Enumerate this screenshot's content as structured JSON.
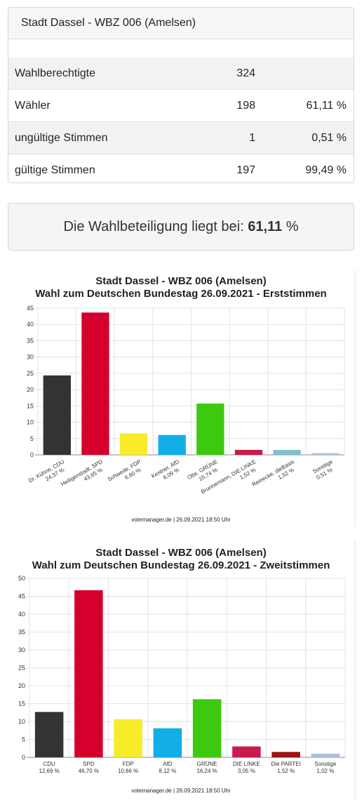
{
  "summary": {
    "title": "Stadt Dassel - WBZ 006 (Amelsen)",
    "rows": [
      {
        "label": "Wahlberechtigte",
        "count": "324",
        "percent": ""
      },
      {
        "label": "Wähler",
        "count": "198",
        "percent": "61,11 %"
      },
      {
        "label": "ungültige Stimmen",
        "count": "1",
        "percent": "0,51 %"
      },
      {
        "label": "gültige Stimmen",
        "count": "197",
        "percent": "99,49 %"
      }
    ]
  },
  "turnout": {
    "prefix": "Die Wahlbeteiligung liegt bei:",
    "value": "61,11",
    "suffix": "%"
  },
  "chart_data": [
    {
      "type": "bar",
      "title": "Stadt Dassel - WBZ 006 (Amelsen)",
      "subtitle": "Wahl zum Deutschen Bundestag 26.09.2021  - Erststimmen",
      "categories": [
        "Dr. Kühne, CDU",
        "Heiligenstadt, SPD",
        "Schwede, FDP",
        "Kestner, AfD",
        "Otte, GRÜNE",
        "Brunnemann, DIE LINKE",
        "Reinecke, dieBasis",
        "Sonstige"
      ],
      "value_labels": [
        "24,37 %",
        "43,65 %",
        "6,60 %",
        "6,09 %",
        "15,74 %",
        "1,52 %",
        "1,52 %",
        "0,51 %"
      ],
      "values": [
        24.37,
        43.65,
        6.6,
        6.09,
        15.74,
        1.52,
        1.52,
        0.51
      ],
      "colors": [
        "#333333",
        "#d4002b",
        "#f8ec2a",
        "#11aee8",
        "#3dc90d",
        "#c91a4a",
        "#7fc2c9",
        "#a9bfe0"
      ],
      "ylim": [
        0,
        45
      ],
      "yticks": [
        0,
        5,
        10,
        15,
        20,
        25,
        30,
        35,
        40,
        45
      ],
      "grid": true,
      "credit": "votemanager.de | 26.09.2021 18:50 Uhr"
    },
    {
      "type": "bar",
      "title": "Stadt Dassel - WBZ 006 (Amelsen)",
      "subtitle": "Wahl zum Deutschen Bundestag 26.09.2021  - Zweitstimmen",
      "categories": [
        "CDU",
        "SPD",
        "FDP",
        "AfD",
        "GRÜNE",
        "DIE LINKE",
        "Die PARTEI",
        "Sonstige"
      ],
      "value_labels": [
        "12,69 %",
        "46,70 %",
        "10,66 %",
        "8,12 %",
        "16,24 %",
        "3,05 %",
        "1,52 %",
        "1,02 %"
      ],
      "values": [
        12.69,
        46.7,
        10.66,
        8.12,
        16.24,
        3.05,
        1.52,
        1.02
      ],
      "colors": [
        "#333333",
        "#d4002b",
        "#f8ec2a",
        "#11aee8",
        "#3dc90d",
        "#c91a4a",
        "#9b1515",
        "#a9bfe0"
      ],
      "ylim": [
        0,
        50
      ],
      "yticks": [
        0,
        5,
        10,
        15,
        20,
        25,
        30,
        35,
        40,
        45,
        50
      ],
      "grid": true,
      "credit": "votemanager.de | 26.09.2021 18:50 Uhr"
    }
  ]
}
